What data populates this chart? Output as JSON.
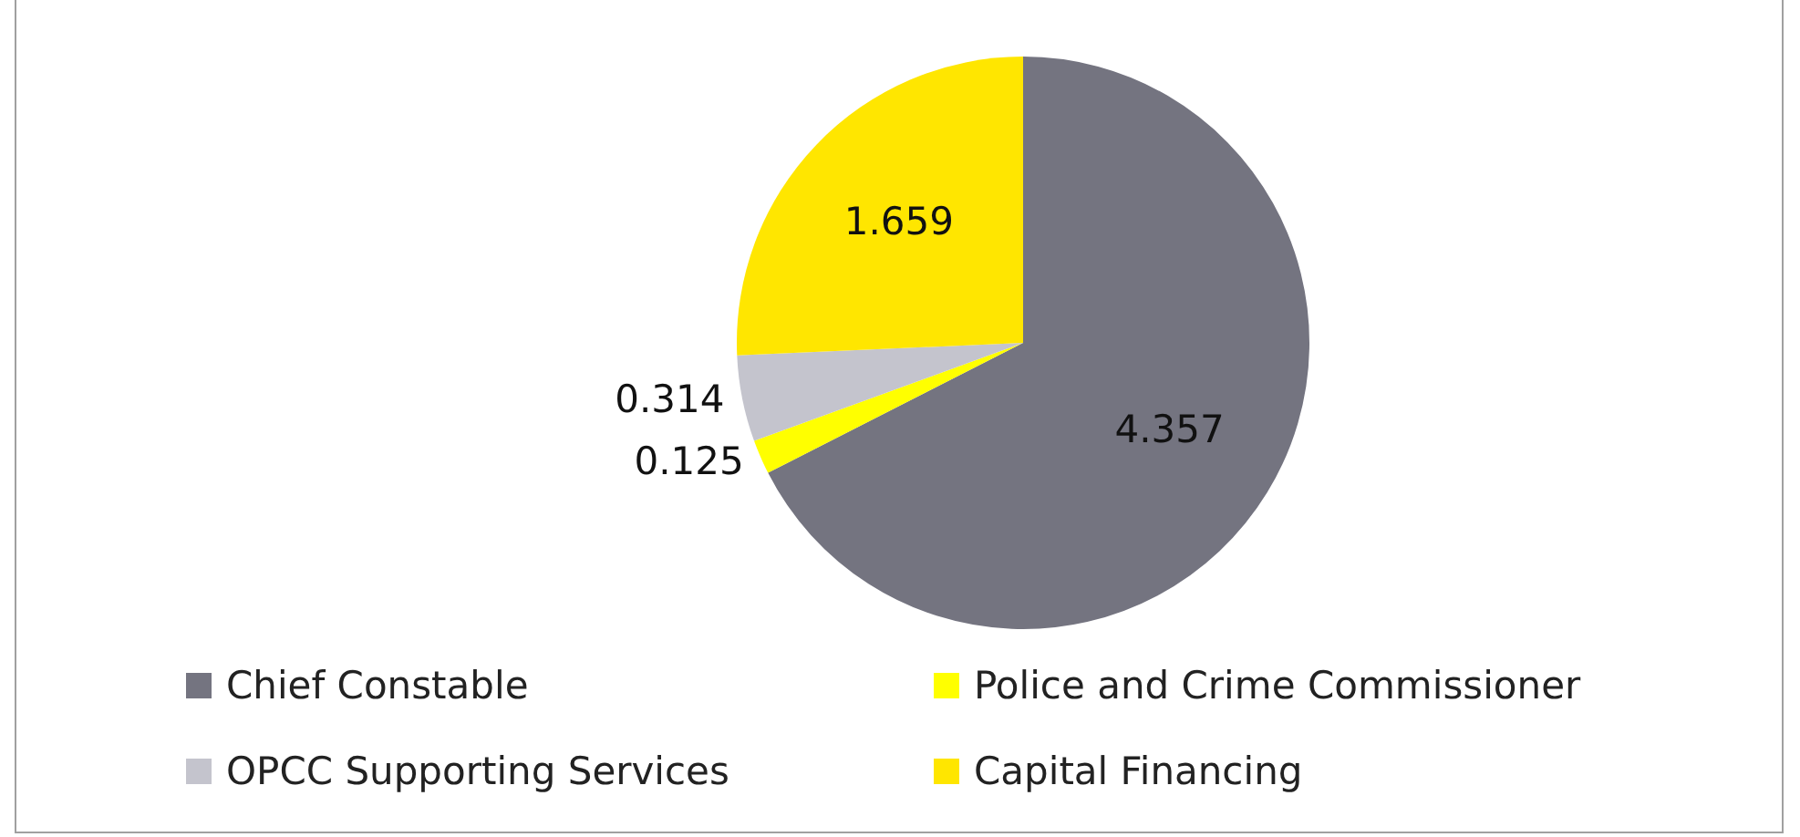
{
  "chart_data": {
    "type": "pie",
    "categories": [
      "Chief Constable",
      "Police and Crime Commissioner",
      "OPCC Supporting Services",
      "Capital Financing"
    ],
    "values": [
      4.357,
      0.125,
      0.314,
      1.659
    ],
    "colors": [
      "#747480",
      "#ffff00",
      "#c4c4cd",
      "#ffe600"
    ],
    "data_labels": true,
    "legend": "bottom"
  }
}
